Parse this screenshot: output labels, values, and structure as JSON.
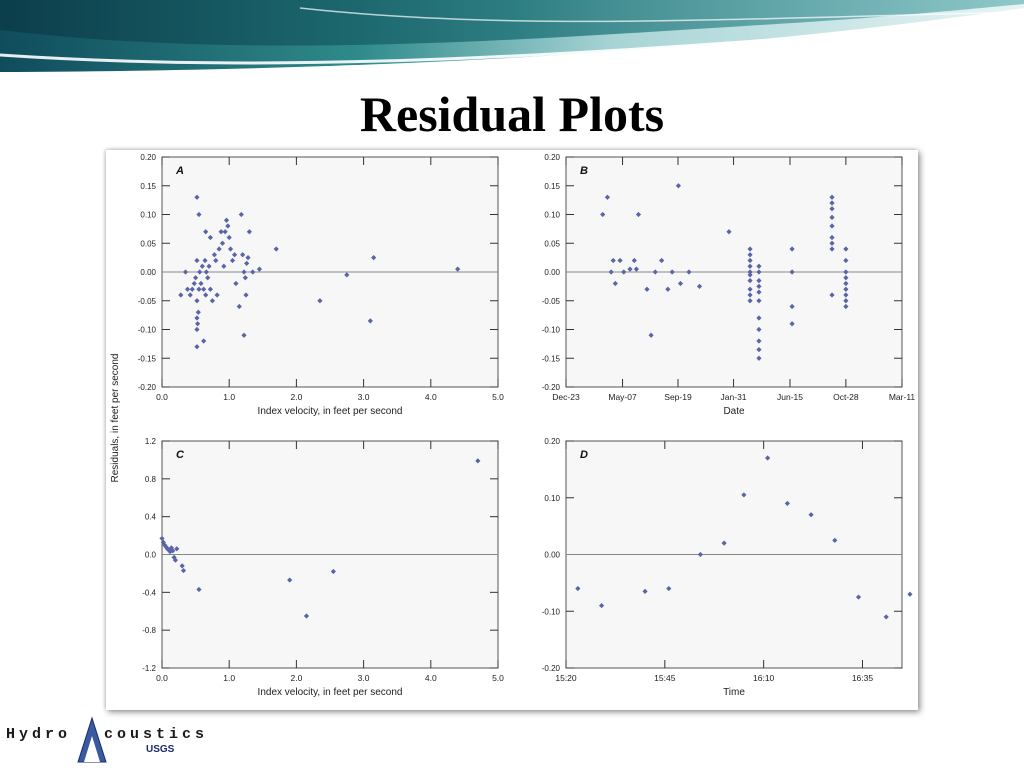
{
  "slide": {
    "title": "Residual Plots"
  },
  "shared_ylabel": "Residuals, in feet per second",
  "logo": {
    "left": "Hydro",
    "right": "coustics",
    "agency": "USGS"
  },
  "colors": {
    "marker": "#5a64a8",
    "panel_bg": "#f7f7f7",
    "banner_teal": "#2f8a8a",
    "banner_dark": "#0f4c5c"
  },
  "chart_data": [
    {
      "type": "scatter",
      "panel": "A",
      "xlabel": "Index velocity, in feet per second",
      "ylabel": "Residuals, in feet per second",
      "xlim": [
        0,
        5
      ],
      "ylim": [
        -0.2,
        0.2
      ],
      "xticks": [
        "0.0",
        "1.0",
        "2.0",
        "3.0",
        "4.0",
        "5.0"
      ],
      "yticks": [
        "-0.20",
        "-0.15",
        "-0.10",
        "-0.05",
        "0.00",
        "0.05",
        "0.10",
        "0.15",
        "0.20"
      ],
      "zero_line": true,
      "points": [
        [
          0.52,
          0.13
        ],
        [
          0.52,
          0.02
        ],
        [
          0.55,
          0.1
        ],
        [
          0.65,
          0.07
        ],
        [
          0.72,
          0.06
        ],
        [
          0.28,
          -0.04
        ],
        [
          0.35,
          0.0
        ],
        [
          0.38,
          -0.03
        ],
        [
          0.42,
          -0.04
        ],
        [
          0.45,
          -0.03
        ],
        [
          0.48,
          -0.02
        ],
        [
          0.5,
          -0.01
        ],
        [
          0.52,
          -0.05
        ],
        [
          0.53,
          -0.09
        ],
        [
          0.54,
          -0.07
        ],
        [
          0.55,
          -0.03
        ],
        [
          0.56,
          0.0
        ],
        [
          0.58,
          -0.02
        ],
        [
          0.6,
          0.01
        ],
        [
          0.62,
          -0.03
        ],
        [
          0.64,
          0.02
        ],
        [
          0.65,
          -0.04
        ],
        [
          0.66,
          0.0
        ],
        [
          0.68,
          -0.01
        ],
        [
          0.7,
          0.01
        ],
        [
          0.72,
          -0.03
        ],
        [
          0.75,
          -0.05
        ],
        [
          0.78,
          0.03
        ],
        [
          0.8,
          0.02
        ],
        [
          0.82,
          -0.04
        ],
        [
          0.85,
          0.04
        ],
        [
          0.88,
          0.07
        ],
        [
          0.9,
          0.05
        ],
        [
          0.92,
          0.01
        ],
        [
          0.94,
          0.07
        ],
        [
          0.96,
          0.09
        ],
        [
          0.98,
          0.08
        ],
        [
          1.0,
          0.06
        ],
        [
          1.02,
          0.04
        ],
        [
          1.05,
          0.02
        ],
        [
          1.08,
          0.03
        ],
        [
          1.1,
          -0.02
        ],
        [
          1.15,
          -0.06
        ],
        [
          1.18,
          0.1
        ],
        [
          1.2,
          0.03
        ],
        [
          1.22,
          0.0
        ],
        [
          1.24,
          -0.01
        ],
        [
          1.25,
          -0.04
        ],
        [
          1.26,
          0.015
        ],
        [
          1.28,
          0.025
        ],
        [
          1.3,
          0.07
        ],
        [
          1.35,
          0.0
        ],
        [
          1.45,
          0.005
        ],
        [
          1.7,
          0.04
        ],
        [
          0.52,
          -0.08
        ],
        [
          0.52,
          -0.1
        ],
        [
          0.52,
          -0.13
        ],
        [
          0.62,
          -0.12
        ],
        [
          1.22,
          -0.11
        ],
        [
          2.35,
          -0.05
        ],
        [
          2.75,
          -0.005
        ],
        [
          3.1,
          -0.085
        ],
        [
          3.15,
          0.025
        ],
        [
          4.4,
          0.005
        ]
      ]
    },
    {
      "type": "scatter",
      "panel": "B",
      "xlabel": "Date",
      "ylabel": "Residuals, in feet per second",
      "xlim": [
        "Dec-23",
        "Mar-11"
      ],
      "ylim": [
        -0.2,
        0.2
      ],
      "xticks": [
        "Dec-23",
        "May-07",
        "Sep-19",
        "Jan-31",
        "Jun-15",
        "Oct-28",
        "Mar-11"
      ],
      "yticks": [
        "-0.20",
        "-0.15",
        "-0.10",
        "-0.05",
        "0.00",
        "0.05",
        "0.10",
        "0.15",
        "0.20"
      ],
      "zero_line": true,
      "points": [
        [
          "Mar-20",
          0.1
        ],
        [
          "Apr-01",
          0.13
        ],
        [
          "Apr-10",
          0.0
        ],
        [
          "Apr-15",
          0.02
        ],
        [
          "Apr-20",
          -0.02
        ],
        [
          "May-01",
          0.02
        ],
        [
          "May-10",
          0.0
        ],
        [
          "May-25",
          0.005
        ],
        [
          "Jun-05",
          0.02
        ],
        [
          "Jun-10",
          0.005
        ],
        [
          "Jun-15",
          0.1
        ],
        [
          "Jul-05",
          -0.03
        ],
        [
          "Jul-15",
          -0.11
        ],
        [
          "Jul-25",
          0.0
        ],
        [
          "Aug-10",
          0.02
        ],
        [
          "Aug-25",
          -0.03
        ],
        [
          "Sep-05",
          0.0
        ],
        [
          "Sep-20",
          0.15
        ],
        [
          "Sep-25",
          -0.02
        ],
        [
          "Oct-15",
          0.0
        ],
        [
          "Nov-10",
          -0.025
        ],
        [
          "Jan-20",
          0.07
        ],
        [
          "Mar-10",
          0.04
        ],
        [
          "Mar-10",
          0.03
        ],
        [
          "Mar-10",
          0.02
        ],
        [
          "Mar-10",
          0.01
        ],
        [
          "Mar-10",
          0.0
        ],
        [
          "Mar-10",
          -0.005
        ],
        [
          "Mar-10",
          -0.015
        ],
        [
          "Mar-10",
          -0.03
        ],
        [
          "Mar-10",
          -0.04
        ],
        [
          "Mar-10",
          -0.05
        ],
        [
          "Apr-01",
          0.01
        ],
        [
          "Apr-01",
          0.0
        ],
        [
          "Apr-01",
          -0.015
        ],
        [
          "Apr-01",
          -0.025
        ],
        [
          "Apr-01",
          -0.035
        ],
        [
          "Apr-01",
          -0.05
        ],
        [
          "Apr-01",
          -0.08
        ],
        [
          "Apr-01",
          -0.1
        ],
        [
          "Apr-01",
          -0.12
        ],
        [
          "Apr-01",
          -0.135
        ],
        [
          "Apr-01",
          -0.15
        ],
        [
          "Jun-20",
          0.04
        ],
        [
          "Jun-20",
          0.0
        ],
        [
          "Jun-20",
          -0.06
        ],
        [
          "Jun-20",
          -0.09
        ],
        [
          "Sep-25",
          0.13
        ],
        [
          "Sep-25",
          0.12
        ],
        [
          "Sep-25",
          0.11
        ],
        [
          "Sep-25",
          0.095
        ],
        [
          "Sep-25",
          0.08
        ],
        [
          "Sep-25",
          0.06
        ],
        [
          "Sep-25",
          0.05
        ],
        [
          "Sep-25",
          0.04
        ],
        [
          "Sep-25",
          -0.04
        ],
        [
          "Oct-28",
          0.04
        ],
        [
          "Oct-28",
          0.02
        ],
        [
          "Oct-28",
          0.0
        ],
        [
          "Oct-28",
          -0.01
        ],
        [
          "Oct-28",
          -0.02
        ],
        [
          "Oct-28",
          -0.03
        ],
        [
          "Oct-28",
          -0.04
        ],
        [
          "Oct-28",
          -0.05
        ],
        [
          "Oct-28",
          -0.06
        ]
      ]
    },
    {
      "type": "scatter",
      "panel": "C",
      "xlabel": "Index velocity, in feet per second",
      "ylabel": "Residuals, in feet per second",
      "xlim": [
        0,
        5
      ],
      "ylim": [
        -1.2,
        1.2
      ],
      "xticks": [
        "0.0",
        "1.0",
        "2.0",
        "3.0",
        "4.0",
        "5.0"
      ],
      "yticks": [
        "-1.2",
        "-0.8",
        "-0.4",
        "0.0",
        "0.4",
        "0.8",
        "1.2"
      ],
      "zero_line": true,
      "points": [
        [
          0.0,
          0.17
        ],
        [
          0.02,
          0.13
        ],
        [
          0.04,
          0.1
        ],
        [
          0.06,
          0.08
        ],
        [
          0.08,
          0.06
        ],
        [
          0.1,
          0.05
        ],
        [
          0.12,
          0.03
        ],
        [
          0.14,
          0.07
        ],
        [
          0.16,
          0.04
        ],
        [
          0.18,
          -0.03
        ],
        [
          0.2,
          -0.06
        ],
        [
          0.22,
          0.06
        ],
        [
          0.3,
          -0.12
        ],
        [
          0.32,
          -0.17
        ],
        [
          0.55,
          -0.37
        ],
        [
          1.9,
          -0.27
        ],
        [
          2.15,
          -0.65
        ],
        [
          2.55,
          -0.18
        ],
        [
          4.7,
          0.99
        ]
      ]
    },
    {
      "type": "scatter",
      "panel": "D",
      "xlabel": "Time",
      "ylabel": "Residuals, in feet per second",
      "xlim": [
        "15:20",
        "16:45"
      ],
      "ylim": [
        -0.2,
        0.2
      ],
      "xticks": [
        "15:20",
        "15:45",
        "16:10",
        "16:35"
      ],
      "yticks": [
        "-0.20",
        "-0.10",
        "0.00",
        "0.10",
        "0.20"
      ],
      "zero_line": true,
      "points": [
        [
          "15:23",
          -0.06
        ],
        [
          "15:29",
          -0.09
        ],
        [
          "15:40",
          -0.065
        ],
        [
          "15:46",
          -0.06
        ],
        [
          "15:54",
          0.0
        ],
        [
          "16:00",
          0.02
        ],
        [
          "16:05",
          0.105
        ],
        [
          "16:11",
          0.17
        ],
        [
          "16:16",
          0.09
        ],
        [
          "16:22",
          0.07
        ],
        [
          "16:28",
          0.025
        ],
        [
          "16:34",
          -0.075
        ],
        [
          "16:41",
          -0.11
        ],
        [
          "16:47",
          -0.07
        ]
      ]
    }
  ]
}
